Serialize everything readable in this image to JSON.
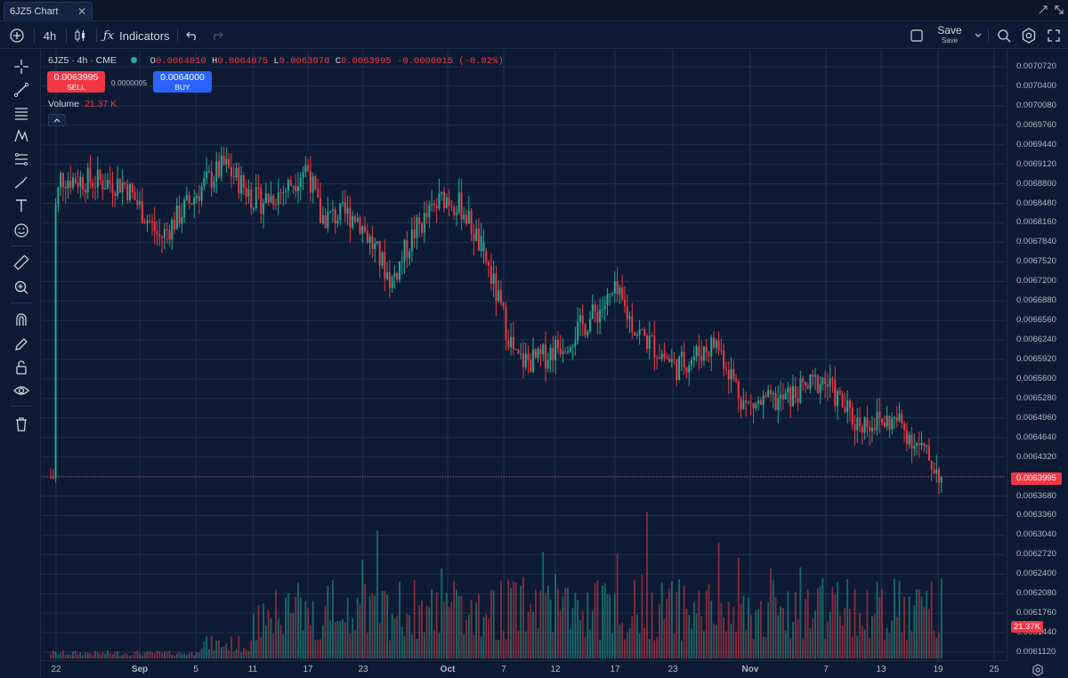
{
  "window": {
    "tab_title": "6JZ5 Chart",
    "close_glyph": "✕"
  },
  "toolbar": {
    "interval": "4h",
    "indicators_label": "Indicators",
    "save_label": "Save",
    "save_sub": "Save"
  },
  "legend": {
    "symbol": "6JZ5 · 4h · CME",
    "o_label": "O",
    "o_value": "0.0064010",
    "h_label": "H",
    "h_value": "0.0064075",
    "l_label": "L",
    "l_value": "0.0063970",
    "c_label": "C",
    "c_value": "0.0063995",
    "change": "-0.0000015 (-0.02%)"
  },
  "trade": {
    "sell_price": "0.0063995",
    "sell_label": "SELL",
    "buy_price": "0.0064000",
    "buy_label": "BUY",
    "spread": "0.0000005"
  },
  "volume": {
    "label": "Volume",
    "value": "21.37 K",
    "tag": "21.37K"
  },
  "current_price_tag": "0.0063995",
  "price_axis": [
    "0.0070720",
    "0.0070400",
    "0.0070080",
    "0.0069760",
    "0.0069440",
    "0.0069120",
    "0.0068800",
    "0.0068480",
    "0.0068160",
    "0.0067840",
    "0.0067520",
    "0.0067200",
    "0.0066880",
    "0.0066560",
    "0.0066240",
    "0.0065920",
    "0.0065600",
    "0.0065280",
    "0.0064960",
    "0.0064640",
    "0.0064320",
    "0.0064000",
    "0.0063680",
    "0.0063360",
    "0.0063040",
    "0.0062720",
    "0.0062400",
    "0.0062080",
    "0.0061760",
    "0.0061440",
    "0.0061120"
  ],
  "time_axis": [
    "22",
    "Sep",
    "5",
    "11",
    "17",
    "23",
    "Oct",
    "7",
    "12",
    "17",
    "23",
    "Nov",
    "7",
    "13",
    "19",
    "25"
  ],
  "colors": {
    "up": "#22ab94",
    "down": "#f23645",
    "grid": "#1f3150",
    "bg": "#0c1b33"
  },
  "chart_data": {
    "type": "candlestick",
    "symbol": "6JZ5",
    "interval": "4h",
    "price_range": [
      0.006112,
      0.007072
    ],
    "close_path_anchors": [
      {
        "label": "Aug 22",
        "close": 0.00682
      },
      {
        "label": "Aug 23",
        "close": 0.00689
      },
      {
        "label": "Sep 1",
        "close": 0.00688
      },
      {
        "label": "Sep 3",
        "close": 0.00679
      },
      {
        "label": "Sep 6",
        "close": 0.00688
      },
      {
        "label": "Sep 8",
        "close": 0.00691
      },
      {
        "label": "Sep 11",
        "close": 0.00685
      },
      {
        "label": "Sep 15",
        "close": 0.00687
      },
      {
        "label": "Sep 18",
        "close": 0.00691
      },
      {
        "label": "Sep 20",
        "close": 0.006825
      },
      {
        "label": "Sep 23",
        "close": 0.00683
      },
      {
        "label": "Sep 26",
        "close": 0.00672
      },
      {
        "label": "Sep 28",
        "close": 0.0068
      },
      {
        "label": "Oct 1",
        "close": 0.00686
      },
      {
        "label": "Oct 4",
        "close": 0.00684
      },
      {
        "label": "Oct 5",
        "close": 0.00676
      },
      {
        "label": "Oct 8",
        "close": 0.00659
      },
      {
        "label": "Oct 11",
        "close": 0.00659
      },
      {
        "label": "Oct 14",
        "close": 0.00664
      },
      {
        "label": "Oct 17",
        "close": 0.0067
      },
      {
        "label": "Oct 20",
        "close": 0.00664
      },
      {
        "label": "Oct 23",
        "close": 0.00658
      },
      {
        "label": "Oct 26",
        "close": 0.00662
      },
      {
        "label": "Oct 29",
        "close": 0.006515
      },
      {
        "label": "Nov 2",
        "close": 0.006525
      },
      {
        "label": "Nov 6",
        "close": 0.00656
      },
      {
        "label": "Nov 10",
        "close": 0.00649
      },
      {
        "label": "Nov 15",
        "close": 0.00649
      },
      {
        "label": "Nov 19",
        "close": 0.0063995
      }
    ],
    "last_close": 0.0063995,
    "last_volume": "21.37K"
  }
}
